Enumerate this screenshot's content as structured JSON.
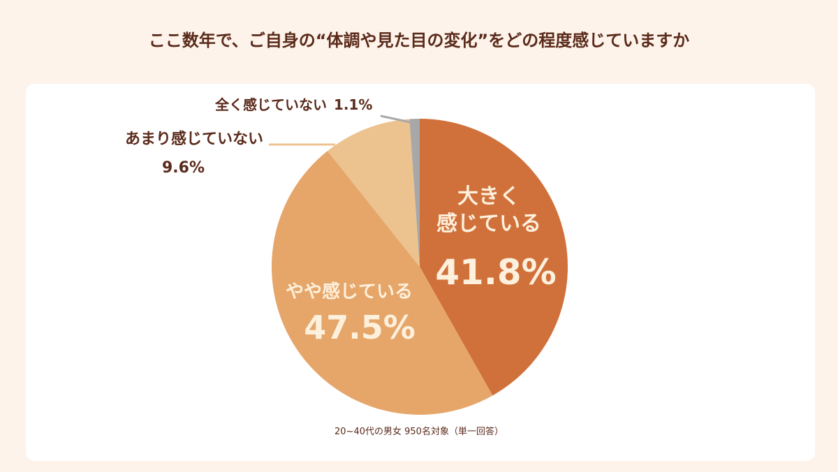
{
  "chart_data": {
    "type": "pie",
    "title": "ここ数年で、ご自身の“体調や見た目の変化”をどの程度感じていますか",
    "categories": [
      "大きく\n感じている",
      "やや感じている",
      "あまり感じていない",
      "全く感じていない"
    ],
    "values": [
      41.8,
      47.5,
      9.6,
      1.1
    ],
    "value_labels": [
      "41.8%",
      "47.5%",
      "9.6%",
      "1.1%"
    ],
    "colors": [
      "#d0713b",
      "#e6a66a",
      "#ecc38f",
      "#a8a8a8"
    ],
    "note": "20~40代の男女 950名対象（単一回答）"
  }
}
